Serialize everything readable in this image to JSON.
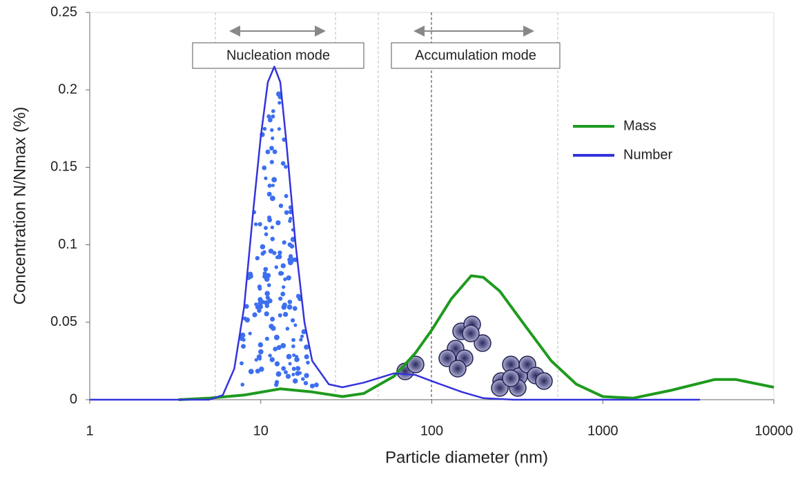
{
  "chart_data": {
    "type": "line",
    "x_label": "Particle diameter (nm)",
    "y_label": "Concentration N/Nmax (%)",
    "xscale": "log",
    "xlim": [
      1,
      10000
    ],
    "xticks": [
      1,
      10,
      100,
      1000,
      10000
    ],
    "ylim": [
      0,
      0.25
    ],
    "yticks": [
      0,
      0.05,
      0.1,
      0.15,
      0.2,
      0.25
    ],
    "legend": "upper right",
    "annotations": [
      "Nucleation mode",
      "Accumulation mode"
    ],
    "series": [
      {
        "name": "Mass",
        "color": "#1e9a1e",
        "x": [
          3.3,
          5,
          8,
          13,
          20,
          30,
          40,
          60,
          80,
          100,
          130,
          170,
          200,
          250,
          350,
          500,
          700,
          1000,
          1500,
          2500,
          4500,
          6000,
          10000
        ],
        "values": [
          0,
          0.001,
          0.003,
          0.007,
          0.005,
          0.002,
          0.004,
          0.015,
          0.03,
          0.045,
          0.065,
          0.08,
          0.079,
          0.07,
          0.048,
          0.025,
          0.01,
          0.002,
          0.001,
          0.006,
          0.013,
          0.013,
          0.008
        ]
      },
      {
        "name": "Number",
        "color": "#3333dd",
        "x": [
          1,
          5,
          6,
          7,
          8,
          9,
          10,
          11,
          12,
          13,
          14,
          16,
          18,
          20,
          25,
          30,
          40,
          60,
          80,
          100,
          150,
          200,
          300,
          3700
        ],
        "values": [
          0,
          0,
          0.003,
          0.02,
          0.06,
          0.12,
          0.17,
          0.205,
          0.215,
          0.205,
          0.17,
          0.1,
          0.05,
          0.025,
          0.01,
          0.008,
          0.011,
          0.017,
          0.016,
          0.012,
          0.005,
          0.001,
          0,
          0
        ]
      }
    ]
  }
}
